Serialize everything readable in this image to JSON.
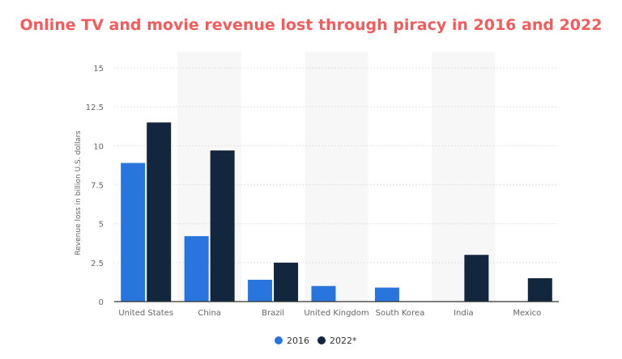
{
  "chart_data": {
    "type": "bar",
    "title": "Online TV and movie revenue lost through piracy in 2016 and 2022",
    "xlabel": "",
    "ylabel": "Revenue loss in billion U.S. dollars",
    "ylim": [
      0,
      15
    ],
    "yticks": [
      "0",
      "2.5",
      "5",
      "7.5",
      "10",
      "12.5",
      "15"
    ],
    "categories": [
      "United States",
      "China",
      "Brazil",
      "United Kingdom",
      "South Korea",
      "India",
      "Mexico"
    ],
    "series": [
      {
        "name": "2016",
        "color": "#2876dd",
        "values": [
          8.9,
          4.2,
          1.4,
          1.0,
          0.9,
          null,
          null
        ]
      },
      {
        "name": "2022*",
        "color": "#12263d",
        "values": [
          11.5,
          9.7,
          2.5,
          null,
          null,
          3.0,
          1.5
        ]
      }
    ],
    "grid": true,
    "legend": "bottom-center",
    "title_color": "#f25c5c"
  }
}
